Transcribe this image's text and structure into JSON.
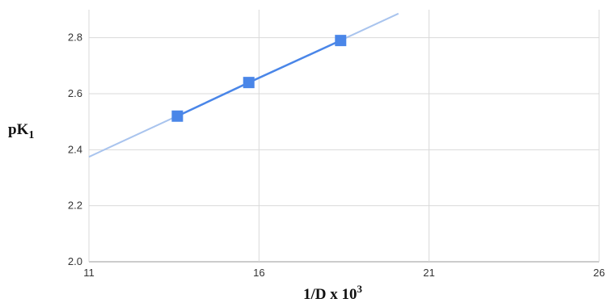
{
  "chart_data": {
    "type": "scatter",
    "title": "",
    "xlabel": {
      "base": "1/D x 10",
      "sup": "3"
    },
    "ylabel": {
      "base": "pK",
      "sub": "1"
    },
    "xlim": [
      11,
      26
    ],
    "ylim": [
      2.0,
      2.9
    ],
    "x_ticks": [
      "11",
      "16",
      "21",
      "26"
    ],
    "y_ticks": [
      "2.0",
      "2.2",
      "2.4",
      "2.6",
      "2.8"
    ],
    "grid": true,
    "legend": "none",
    "series": [
      {
        "x": [
          13.6,
          15.7,
          18.4
        ],
        "y": [
          2.52,
          2.64,
          2.79
        ],
        "marker": "square",
        "color": "#4a86e8"
      }
    ],
    "trendline": {
      "type": "linear",
      "x_range": [
        11,
        20.1
      ],
      "color": "#a9c4ee"
    }
  },
  "colors": {
    "grid": "#d9d9d9",
    "axis": "#999999",
    "point": "#4a86e8",
    "connector": "#4a86e8",
    "trend": "#a9c4ee"
  }
}
